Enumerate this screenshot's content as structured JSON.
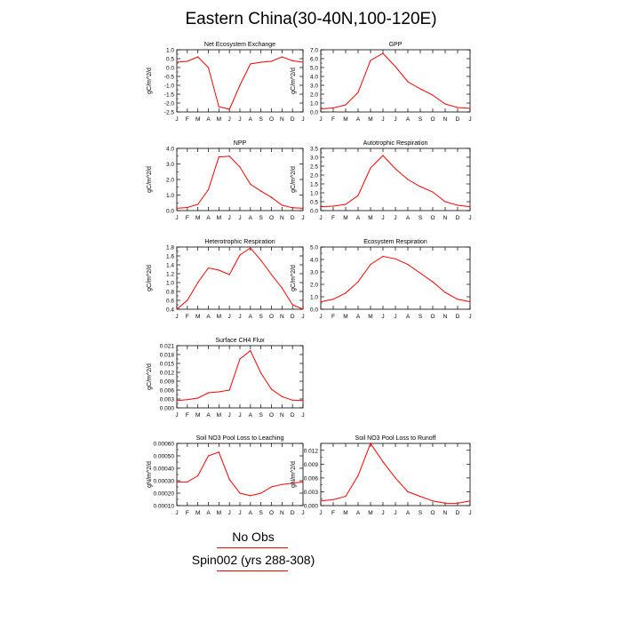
{
  "figure": {
    "title": "Eastern China(30-40N,100-120E)",
    "legend": [
      {
        "label": "No Obs",
        "color": "#ff0000"
      },
      {
        "label": "Spin002 (yrs 288-308)",
        "color": "#ff0000"
      }
    ],
    "series_color": "#ff0000"
  },
  "chart_data": [
    {
      "type": "line",
      "title": "Net Ecosystem Exchange",
      "ylabel": "gC/m^2/d",
      "xticks": [
        "J",
        "F",
        "M",
        "A",
        "M",
        "J",
        "J",
        "A",
        "S",
        "O",
        "N",
        "D",
        "J"
      ],
      "x": [
        0,
        1,
        2,
        3,
        4,
        5,
        6,
        7,
        8,
        9,
        10,
        11,
        12
      ],
      "values": [
        0.3,
        0.35,
        0.6,
        0.0,
        -2.2,
        -2.35,
        -1.0,
        0.2,
        0.3,
        0.35,
        0.6,
        0.38,
        0.3
      ],
      "ylim": [
        -2.5,
        1.0
      ],
      "yticks": [
        -2.5,
        -2.0,
        -1.5,
        -1.0,
        -0.5,
        0.0,
        0.5,
        1.0
      ],
      "ytick_labels": [
        "-2.5",
        "-2.0",
        "-1.5",
        "-1.0",
        "-0.5",
        "0.0",
        "0.5",
        "1.0"
      ]
    },
    {
      "type": "line",
      "title": "GPP",
      "ylabel": "gC/m^2/d",
      "xticks": [
        "J",
        "F",
        "M",
        "A",
        "M",
        "J",
        "J",
        "A",
        "S",
        "O",
        "N",
        "D",
        "J"
      ],
      "x": [
        0,
        1,
        2,
        3,
        4,
        5,
        6,
        7,
        8,
        9,
        10,
        11,
        12
      ],
      "values": [
        0.35,
        0.45,
        0.8,
        2.2,
        5.8,
        6.6,
        5.1,
        3.4,
        2.6,
        1.9,
        0.9,
        0.5,
        0.4
      ],
      "ylim": [
        0.0,
        7.0
      ],
      "yticks": [
        0,
        1,
        2,
        3,
        4,
        5,
        6,
        7
      ],
      "ytick_labels": [
        "0.0",
        "1.0",
        "2.0",
        "3.0",
        "4.0",
        "5.0",
        "6.0",
        "7.0"
      ]
    },
    {
      "type": "line",
      "title": "NPP",
      "ylabel": "gC/m^2/d",
      "xticks": [
        "J",
        "F",
        "M",
        "A",
        "M",
        "J",
        "J",
        "A",
        "S",
        "O",
        "N",
        "D",
        "J"
      ],
      "x": [
        0,
        1,
        2,
        3,
        4,
        5,
        6,
        7,
        8,
        9,
        10,
        11,
        12
      ],
      "values": [
        0.15,
        0.2,
        0.4,
        1.35,
        3.45,
        3.5,
        2.8,
        1.7,
        1.25,
        0.85,
        0.35,
        0.18,
        0.15
      ],
      "ylim": [
        0.0,
        4.0
      ],
      "yticks": [
        0,
        1,
        2,
        3,
        4
      ],
      "ytick_labels": [
        "0.0",
        "1.0",
        "2.0",
        "3.0",
        "4.0"
      ]
    },
    {
      "type": "line",
      "title": "Autotrophic Respiration",
      "ylabel": "gC/m^2/d",
      "xticks": [
        "J",
        "F",
        "M",
        "A",
        "M",
        "J",
        "J",
        "A",
        "S",
        "O",
        "N",
        "D",
        "J"
      ],
      "x": [
        0,
        1,
        2,
        3,
        4,
        5,
        6,
        7,
        8,
        9,
        10,
        11,
        12
      ],
      "values": [
        0.22,
        0.25,
        0.35,
        0.85,
        2.4,
        3.1,
        2.35,
        1.75,
        1.35,
        1.05,
        0.5,
        0.3,
        0.22
      ],
      "ylim": [
        0.0,
        3.5
      ],
      "yticks": [
        0,
        0.5,
        1,
        1.5,
        2,
        2.5,
        3,
        3.5
      ],
      "ytick_labels": [
        "0.0",
        "0.5",
        "1.0",
        "1.5",
        "2.0",
        "2.5",
        "3.0",
        "3.5"
      ]
    },
    {
      "type": "line",
      "title": "Heterotrophic Respiration",
      "ylabel": "gC/m^2/d",
      "xticks": [
        "J",
        "F",
        "M",
        "A",
        "M",
        "J",
        "J",
        "A",
        "S",
        "O",
        "N",
        "D",
        "J"
      ],
      "x": [
        0,
        1,
        2,
        3,
        4,
        5,
        6,
        7,
        8,
        9,
        10,
        11,
        12
      ],
      "values": [
        0.4,
        0.6,
        1.0,
        1.33,
        1.28,
        1.18,
        1.62,
        1.78,
        1.5,
        1.18,
        0.88,
        0.5,
        0.4
      ],
      "ylim": [
        0.4,
        1.8
      ],
      "yticks": [
        0.4,
        0.6,
        0.8,
        1.0,
        1.2,
        1.4,
        1.6,
        1.8
      ],
      "ytick_labels": [
        "0.4",
        "0.6",
        "0.8",
        "1.0",
        "1.2",
        "1.4",
        "1.6",
        "1.8"
      ]
    },
    {
      "type": "line",
      "title": "Ecosystem Respiration",
      "ylabel": "gC/m^2/d",
      "xticks": [
        "J",
        "F",
        "M",
        "A",
        "M",
        "J",
        "J",
        "A",
        "S",
        "O",
        "N",
        "D",
        "J"
      ],
      "x": [
        0,
        1,
        2,
        3,
        4,
        5,
        6,
        7,
        8,
        9,
        10,
        11,
        12
      ],
      "values": [
        0.6,
        0.8,
        1.3,
        2.2,
        3.6,
        4.25,
        4.05,
        3.6,
        2.9,
        2.2,
        1.35,
        0.8,
        0.6
      ],
      "ylim": [
        0.0,
        5.0
      ],
      "yticks": [
        0,
        1,
        2,
        3,
        4,
        5
      ],
      "ytick_labels": [
        "0.0",
        "1.0",
        "2.0",
        "3.0",
        "4.0",
        "5.0"
      ]
    },
    {
      "type": "line",
      "title": "Surface CH4 Flux",
      "ylabel": "gC/m^2/d",
      "xticks": [
        "J",
        "F",
        "M",
        "A",
        "M",
        "J",
        "J",
        "A",
        "S",
        "O",
        "N",
        "D",
        "J"
      ],
      "x": [
        0,
        1,
        2,
        3,
        4,
        5,
        6,
        7,
        8,
        9,
        10,
        11,
        12
      ],
      "values": [
        0.0025,
        0.0028,
        0.0033,
        0.0051,
        0.0054,
        0.006,
        0.0165,
        0.0193,
        0.0117,
        0.0063,
        0.0038,
        0.0026,
        0.0025
      ],
      "ylim": [
        0.0,
        0.021
      ],
      "yticks": [
        0,
        0.003,
        0.006,
        0.009,
        0.012,
        0.015,
        0.018,
        0.021
      ],
      "ytick_labels": [
        "0.000",
        "0.003",
        "0.006",
        "0.009",
        "0.012",
        "0.015",
        "0.018",
        "0.021"
      ]
    },
    {
      "type": "line",
      "title": "Soil NO3 Pool Loss to Leaching",
      "ylabel": "gN/m^2/d",
      "xticks": [
        "J",
        "F",
        "M",
        "A",
        "M",
        "J",
        "J",
        "A",
        "S",
        "O",
        "N",
        "D",
        "J"
      ],
      "x": [
        0,
        1,
        2,
        3,
        4,
        5,
        6,
        7,
        8,
        9,
        10,
        11,
        12
      ],
      "values": [
        0.00029,
        0.00029,
        0.00034,
        0.0005,
        0.00053,
        0.00031,
        0.0002,
        0.00018,
        0.0002,
        0.00025,
        0.00027,
        0.00028,
        0.00029
      ],
      "ylim": [
        0.0001,
        0.0006
      ],
      "yticks": [
        0.0001,
        0.0002,
        0.0003,
        0.0004,
        0.0005,
        0.0006
      ],
      "ytick_labels": [
        "0.00010",
        "0.00020",
        "0.00030",
        "0.00040",
        "0.00050",
        "0.00060"
      ]
    },
    {
      "type": "line",
      "title": "Soil NO3 Pool Loss to Runoff",
      "ylabel": "gN/m^2/d",
      "xticks": [
        "J",
        "F",
        "M",
        "A",
        "M",
        "J",
        "J",
        "A",
        "S",
        "O",
        "N",
        "D",
        "J"
      ],
      "x": [
        0,
        1,
        2,
        3,
        4,
        5,
        6,
        7,
        8,
        9,
        10,
        11,
        12
      ],
      "values": [
        0.001,
        0.0013,
        0.002,
        0.0065,
        0.0135,
        0.0095,
        0.006,
        0.003,
        0.002,
        0.001,
        0.0005,
        0.0005,
        0.001
      ],
      "ylim": [
        0.0,
        0.0135
      ],
      "yticks": [
        0,
        0.003,
        0.006,
        0.009,
        0.012
      ],
      "ytick_labels": [
        "0.000",
        "0.003",
        "0.006",
        "0.009",
        "0.012"
      ]
    }
  ]
}
